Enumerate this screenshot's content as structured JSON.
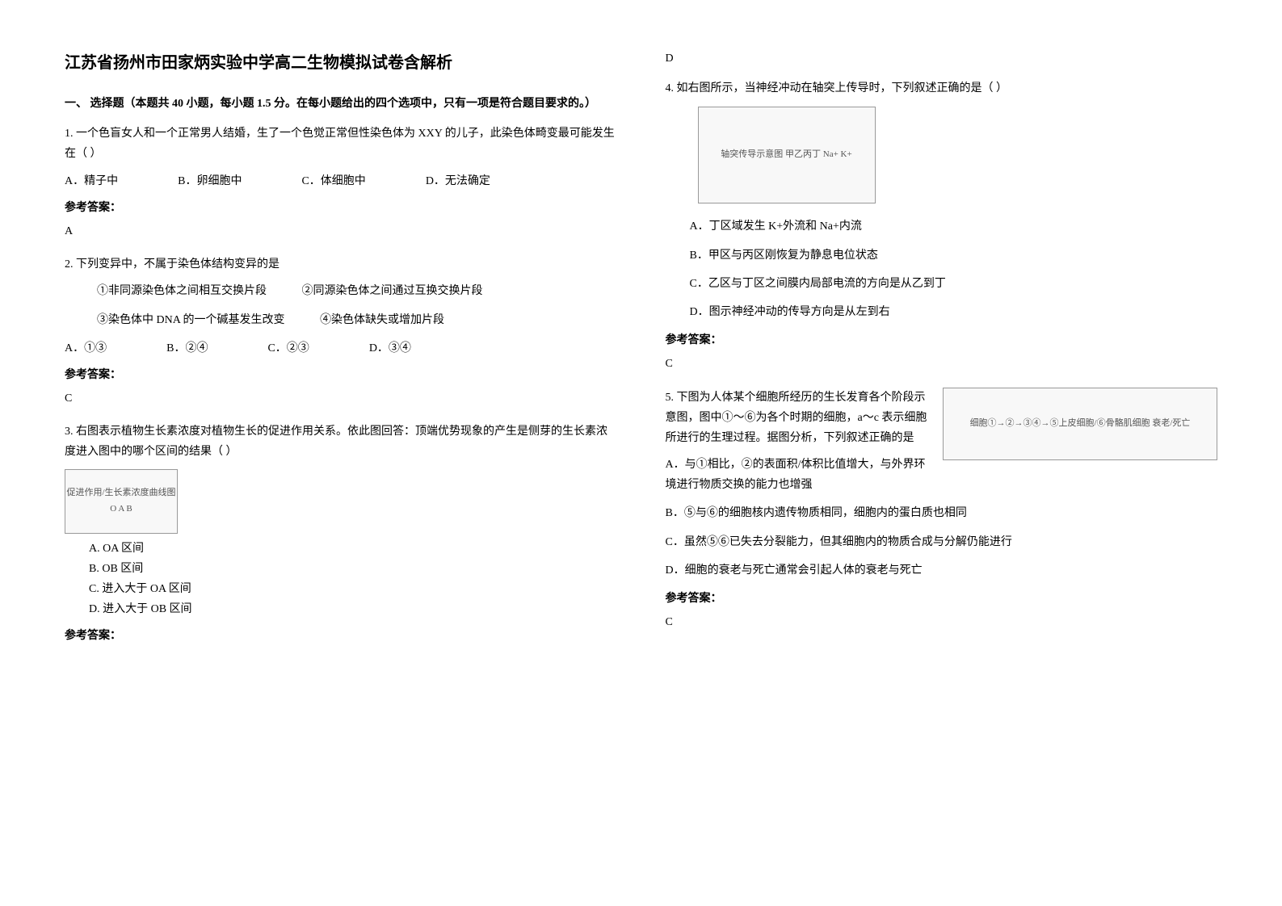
{
  "title": "江苏省扬州市田家炳实验中学高二生物模拟试卷含解析",
  "section_one_header": "一、 选择题（本题共 40 小题，每小题 1.5 分。在每小题给出的四个选项中，只有一项是符合题目要求的。）",
  "answer_label": "参考答案：",
  "q1": {
    "text": "1. 一个色盲女人和一个正常男人结婚，生了一个色觉正常但性染色体为 XXY 的儿子，此染色体畸变最可能发生在（        ）",
    "optA": "A．精子中",
    "optB": "B．卵细胞中",
    "optC": "C．体细胞中",
    "optD": "D．无法确定",
    "answer": "A"
  },
  "q2": {
    "text": "2. 下列变异中，不属于染色体结构变异的是",
    "sub1": "①非同源染色体之间相互交换片段",
    "sub2": "②同源染色体之间通过互换交换片段",
    "sub3": "③染色体中 DNA 的一个碱基发生改变",
    "sub4": "④染色体缺失或增加片段",
    "optA": "A．①③",
    "optB": "B．②④",
    "optC": "C．②③",
    "optD": "D．③④",
    "answer": "C"
  },
  "q3": {
    "text": "3. 右图表示植物生长素浓度对植物生长的促进作用关系。依此图回答：顶端优势现象的产生是侧芽的生长素浓度进入图中的哪个区间的结果（      ）",
    "chart_desc": "促进作用/生长素浓度曲线图 O A B",
    "optA": "A. OA 区间",
    "optB": "B. OB 区间",
    "optC": "C. 进入大于 OA 区间",
    "optD": "D. 进入大于 OB 区间",
    "answer": "D"
  },
  "q4": {
    "text": "4. 如右图所示，当神经冲动在轴突上传导时，下列叙述正确的是（   ）",
    "chart_desc": "轴突传导示意图 甲乙丙丁 Na+ K+",
    "optA": "A．丁区域发生 K+外流和 Na+内流",
    "optB": "B．甲区与丙区刚恢复为静息电位状态",
    "optC": "C．乙区与丁区之间膜内局部电流的方向是从乙到丁",
    "optD": "D．图示神经冲动的传导方向是从左到右",
    "answer": "C"
  },
  "q5": {
    "text": "5. 下图为人体某个细胞所经历的生长发育各个阶段示意图，图中①～⑥为各个时期的细胞，a～c 表示细胞所进行的生理过程。据图分析，下列叙述正确的是",
    "chart_desc": "细胞①→②→③④→⑤上皮细胞/⑥骨骼肌细胞 衰老/死亡",
    "optA": "A．与①相比，②的表面积/体积比值增大，与外界环境进行物质交换的能力也增强",
    "optB": "B．⑤与⑥的细胞核内遗传物质相同，细胞内的蛋白质也相同",
    "optC": "C．虽然⑤⑥已失去分裂能力，但其细胞内的物质合成与分解仍能进行",
    "optD": "D．细胞的衰老与死亡通常会引起人体的衰老与死亡",
    "answer": "C"
  }
}
